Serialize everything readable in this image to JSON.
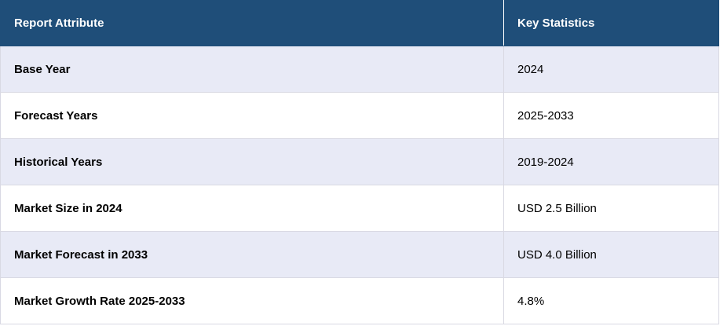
{
  "table": {
    "header": [
      "Report Attribute",
      "Key Statistics"
    ],
    "rows": [
      [
        "Base Year",
        "2024"
      ],
      [
        "Forecast Years",
        "2025-2033"
      ],
      [
        "Historical Years",
        "2019-2024"
      ],
      [
        "Market Size in 2024",
        "USD 2.5 Billion"
      ],
      [
        "Market Forecast in 2033",
        "USD 4.0 Billion"
      ],
      [
        "Market Growth Rate 2025-2033",
        "4.8%"
      ]
    ]
  }
}
